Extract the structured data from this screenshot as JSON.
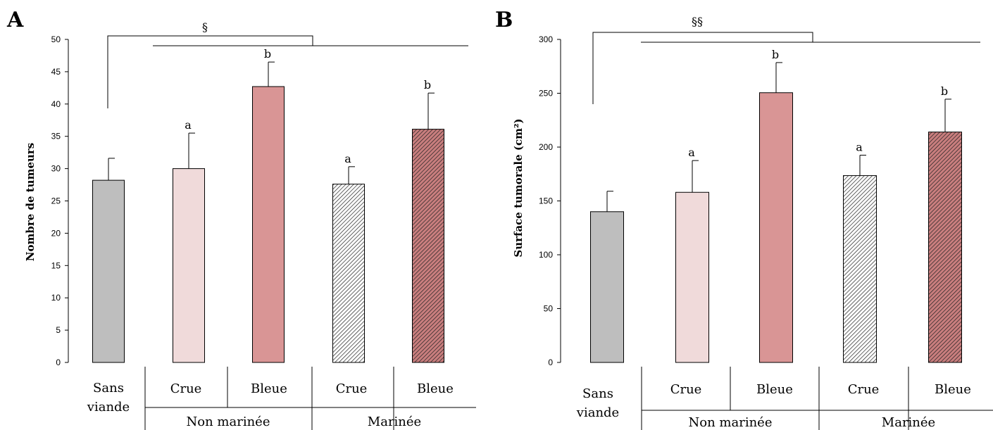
{
  "chart_data": [
    {
      "type": "bar",
      "panel_label": "A",
      "ylabel": "Nombre de tumeurs",
      "ylim": [
        0,
        50
      ],
      "yticks": [
        0,
        5,
        10,
        15,
        20,
        25,
        30,
        35,
        40,
        45,
        50
      ],
      "categories": [
        "Sans viande",
        "Crue",
        "Bleue",
        "Crue",
        "Bleue"
      ],
      "groups": [
        {
          "label": "Non marinée",
          "categories": [
            "Crue",
            "Bleue"
          ]
        },
        {
          "label": "Marinée",
          "categories": [
            "Crue",
            "Bleue"
          ]
        }
      ],
      "values": [
        28.2,
        30.0,
        42.7,
        27.6,
        36.1
      ],
      "errors": [
        3.4,
        5.5,
        3.8,
        2.7,
        5.6
      ],
      "letters": [
        "",
        "a",
        "b",
        "a",
        "b"
      ],
      "bracket_label": "§",
      "fills": [
        "gray",
        "light-pink",
        "rose",
        "hatched-white",
        "hatched-rose"
      ],
      "colors": {
        "gray": "#bebebe",
        "light_pink": "#f0dada",
        "rose": "#d99595",
        "hatch_line": "#222222",
        "hatched_rose_bg": "#c97e7e"
      }
    },
    {
      "type": "bar",
      "panel_label": "B",
      "ylabel": "Surface tumorale (cm²)",
      "ylim": [
        0,
        300
      ],
      "yticks": [
        0,
        50,
        100,
        150,
        200,
        250,
        300
      ],
      "categories": [
        "Sans viande",
        "Crue",
        "Bleue",
        "Crue",
        "Bleue"
      ],
      "groups": [
        {
          "label": "Non marinée",
          "categories": [
            "Crue",
            "Bleue"
          ]
        },
        {
          "label": "Marinée",
          "categories": [
            "Crue",
            "Bleue"
          ]
        }
      ],
      "values": [
        140,
        158,
        250.5,
        173.5,
        214
      ],
      "errors": [
        19,
        29.5,
        28,
        19,
        30.5
      ],
      "letters": [
        "",
        "a",
        "b",
        "a",
        "b"
      ],
      "bracket_label": "§§",
      "fills": [
        "gray",
        "light-pink",
        "rose",
        "hatched-white",
        "hatched-rose"
      ],
      "colors": {
        "gray": "#bebebe",
        "light_pink": "#f0dada",
        "rose": "#d99595",
        "hatch_line": "#222222",
        "hatched_rose_bg": "#c97e7e"
      }
    }
  ],
  "x_table": {
    "no_meat": [
      "Sans",
      "viande"
    ],
    "treatments": [
      "Crue",
      "Bleue",
      "Crue",
      "Bleue"
    ],
    "groups": [
      "Non marinée",
      "Marinée"
    ]
  }
}
